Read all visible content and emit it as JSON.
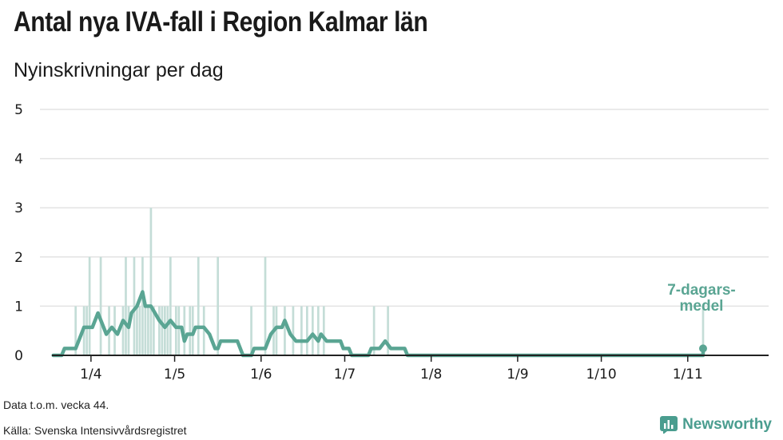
{
  "title": "Antal nya IVA-fall i Region Kalmar län",
  "subtitle": "Nyinskrivningar per dag",
  "footer": {
    "note": "Data t.o.m. vecka 44.",
    "source": "Källa: Svenska Intensivvårdsregistret"
  },
  "brand": {
    "name": "Newsworthy",
    "icon": "newsworthy-logo-icon"
  },
  "colors": {
    "bars": "#c4ddd7",
    "line": "#5aa593",
    "axis": "#222222",
    "grid": "#e3e3e3"
  },
  "chart_data": {
    "type": "bar",
    "ylim": [
      0,
      5
    ],
    "y_ticks": [
      0,
      1,
      2,
      3,
      4,
      5
    ],
    "xlim": [
      "2020-03-18",
      "2020-11-30"
    ],
    "x_ticks": [
      {
        "date": "2020-04-01",
        "label": "1/4"
      },
      {
        "date": "2020-05-01",
        "label": "1/5"
      },
      {
        "date": "2020-06-01",
        "label": "1/6"
      },
      {
        "date": "2020-07-01",
        "label": "1/7"
      },
      {
        "date": "2020-08-01",
        "label": "1/8"
      },
      {
        "date": "2020-09-01",
        "label": "1/9"
      },
      {
        "date": "2020-10-01",
        "label": "1/10"
      },
      {
        "date": "2020-11-01",
        "label": "1/11"
      }
    ],
    "grid": true,
    "bars": {
      "name": "",
      "points": [
        {
          "x": "2020-03-26",
          "y": 1
        },
        {
          "x": "2020-03-29",
          "y": 1
        },
        {
          "x": "2020-03-30",
          "y": 1
        },
        {
          "x": "2020-03-31",
          "y": 2
        },
        {
          "x": "2020-04-04",
          "y": 2
        },
        {
          "x": "2020-04-07",
          "y": 1
        },
        {
          "x": "2020-04-09",
          "y": 1
        },
        {
          "x": "2020-04-12",
          "y": 1
        },
        {
          "x": "2020-04-13",
          "y": 2
        },
        {
          "x": "2020-04-14",
          "y": 1
        },
        {
          "x": "2020-04-16",
          "y": 2
        },
        {
          "x": "2020-04-17",
          "y": 1
        },
        {
          "x": "2020-04-18",
          "y": 1
        },
        {
          "x": "2020-04-19",
          "y": 2
        },
        {
          "x": "2020-04-20",
          "y": 1
        },
        {
          "x": "2020-04-21",
          "y": 1
        },
        {
          "x": "2020-04-22",
          "y": 3
        },
        {
          "x": "2020-04-23",
          "y": 1
        },
        {
          "x": "2020-04-25",
          "y": 1
        },
        {
          "x": "2020-04-26",
          "y": 1
        },
        {
          "x": "2020-04-27",
          "y": 1
        },
        {
          "x": "2020-04-28",
          "y": 1
        },
        {
          "x": "2020-04-29",
          "y": 2
        },
        {
          "x": "2020-05-01",
          "y": 1
        },
        {
          "x": "2020-05-02",
          "y": 1
        },
        {
          "x": "2020-05-04",
          "y": 1
        },
        {
          "x": "2020-05-06",
          "y": 1
        },
        {
          "x": "2020-05-07",
          "y": 1
        },
        {
          "x": "2020-05-09",
          "y": 2
        },
        {
          "x": "2020-05-11",
          "y": 1
        },
        {
          "x": "2020-05-16",
          "y": 2
        },
        {
          "x": "2020-05-28",
          "y": 1
        },
        {
          "x": "2020-06-02",
          "y": 2
        },
        {
          "x": "2020-06-05",
          "y": 1
        },
        {
          "x": "2020-06-06",
          "y": 1
        },
        {
          "x": "2020-06-09",
          "y": 1
        },
        {
          "x": "2020-06-12",
          "y": 1
        },
        {
          "x": "2020-06-15",
          "y": 1
        },
        {
          "x": "2020-06-17",
          "y": 1
        },
        {
          "x": "2020-06-19",
          "y": 1
        },
        {
          "x": "2020-06-21",
          "y": 1
        },
        {
          "x": "2020-06-23",
          "y": 1
        },
        {
          "x": "2020-07-11",
          "y": 1
        },
        {
          "x": "2020-07-16",
          "y": 1
        },
        {
          "x": "2020-11-06",
          "y": 1
        }
      ]
    },
    "line": {
      "name": "7-dagars-medel",
      "annotation": [
        "7-dagars-",
        "medel"
      ],
      "points": [
        {
          "x": "2020-03-18",
          "y": 0
        },
        {
          "x": "2020-03-21",
          "y": 0
        },
        {
          "x": "2020-03-22",
          "y": 0.14
        },
        {
          "x": "2020-03-26",
          "y": 0.14
        },
        {
          "x": "2020-03-29",
          "y": 0.57
        },
        {
          "x": "2020-04-01",
          "y": 0.57
        },
        {
          "x": "2020-04-03",
          "y": 0.86
        },
        {
          "x": "2020-04-06",
          "y": 0.43
        },
        {
          "x": "2020-04-08",
          "y": 0.57
        },
        {
          "x": "2020-04-10",
          "y": 0.43
        },
        {
          "x": "2020-04-12",
          "y": 0.71
        },
        {
          "x": "2020-04-14",
          "y": 0.57
        },
        {
          "x": "2020-04-15",
          "y": 0.86
        },
        {
          "x": "2020-04-17",
          "y": 1.0
        },
        {
          "x": "2020-04-19",
          "y": 1.29
        },
        {
          "x": "2020-04-20",
          "y": 1.0
        },
        {
          "x": "2020-04-22",
          "y": 1.0
        },
        {
          "x": "2020-04-25",
          "y": 0.71
        },
        {
          "x": "2020-04-27",
          "y": 0.57
        },
        {
          "x": "2020-04-29",
          "y": 0.71
        },
        {
          "x": "2020-05-01",
          "y": 0.57
        },
        {
          "x": "2020-05-03",
          "y": 0.57
        },
        {
          "x": "2020-05-04",
          "y": 0.29
        },
        {
          "x": "2020-05-05",
          "y": 0.43
        },
        {
          "x": "2020-05-07",
          "y": 0.43
        },
        {
          "x": "2020-05-08",
          "y": 0.57
        },
        {
          "x": "2020-05-11",
          "y": 0.57
        },
        {
          "x": "2020-05-13",
          "y": 0.43
        },
        {
          "x": "2020-05-15",
          "y": 0.14
        },
        {
          "x": "2020-05-16",
          "y": 0.14
        },
        {
          "x": "2020-05-17",
          "y": 0.29
        },
        {
          "x": "2020-05-23",
          "y": 0.29
        },
        {
          "x": "2020-05-25",
          "y": 0
        },
        {
          "x": "2020-05-28",
          "y": 0
        },
        {
          "x": "2020-05-29",
          "y": 0.14
        },
        {
          "x": "2020-06-02",
          "y": 0.14
        },
        {
          "x": "2020-06-04",
          "y": 0.43
        },
        {
          "x": "2020-06-06",
          "y": 0.57
        },
        {
          "x": "2020-06-08",
          "y": 0.57
        },
        {
          "x": "2020-06-09",
          "y": 0.71
        },
        {
          "x": "2020-06-11",
          "y": 0.43
        },
        {
          "x": "2020-06-13",
          "y": 0.29
        },
        {
          "x": "2020-06-17",
          "y": 0.29
        },
        {
          "x": "2020-06-19",
          "y": 0.43
        },
        {
          "x": "2020-06-21",
          "y": 0.29
        },
        {
          "x": "2020-06-22",
          "y": 0.43
        },
        {
          "x": "2020-06-24",
          "y": 0.29
        },
        {
          "x": "2020-06-29",
          "y": 0.29
        },
        {
          "x": "2020-06-30",
          "y": 0.14
        },
        {
          "x": "2020-07-02",
          "y": 0.14
        },
        {
          "x": "2020-07-03",
          "y": 0
        },
        {
          "x": "2020-07-09",
          "y": 0
        },
        {
          "x": "2020-07-10",
          "y": 0.14
        },
        {
          "x": "2020-07-13",
          "y": 0.14
        },
        {
          "x": "2020-07-15",
          "y": 0.29
        },
        {
          "x": "2020-07-17",
          "y": 0.14
        },
        {
          "x": "2020-07-22",
          "y": 0.14
        },
        {
          "x": "2020-07-23",
          "y": 0
        },
        {
          "x": "2020-11-06",
          "y": 0
        },
        {
          "x": "2020-11-06",
          "y": 0.14
        }
      ]
    }
  }
}
